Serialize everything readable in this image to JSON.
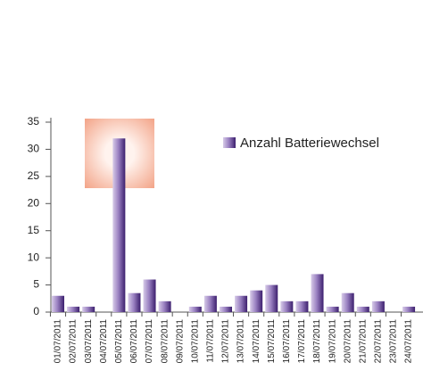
{
  "chart_data": {
    "type": "bar",
    "categories": [
      "01/07/2011",
      "02/07/2011",
      "03/07/2011",
      "04/07/2011",
      "05/07/2011",
      "06/07/2011",
      "07/07/2011",
      "08/07/2011",
      "09/07/2011",
      "10/07/2011",
      "11/07/2011",
      "12/07/2011",
      "13/07/2011",
      "14/07/2011",
      "15/07/2011",
      "16/07/2011",
      "17/07/2011",
      "18/07/2011",
      "19/07/2011",
      "20/07/2011",
      "21/07/2011",
      "22/07/2011",
      "23/07/2011",
      "24/07/2011"
    ],
    "series": [
      {
        "name": "Anzahl Batteriewechsel",
        "color": "#5a3a8c",
        "values": [
          3,
          1,
          1,
          0,
          32,
          3.5,
          6,
          2,
          0,
          1,
          3,
          1,
          3,
          4,
          5,
          2,
          2,
          7,
          1,
          3.5,
          1,
          2,
          0,
          1
        ]
      }
    ],
    "ylim": [
      0,
      35
    ],
    "yticks": [
      0,
      5,
      10,
      15,
      20,
      25,
      30,
      35
    ],
    "grid": false,
    "legend": "top-right"
  }
}
